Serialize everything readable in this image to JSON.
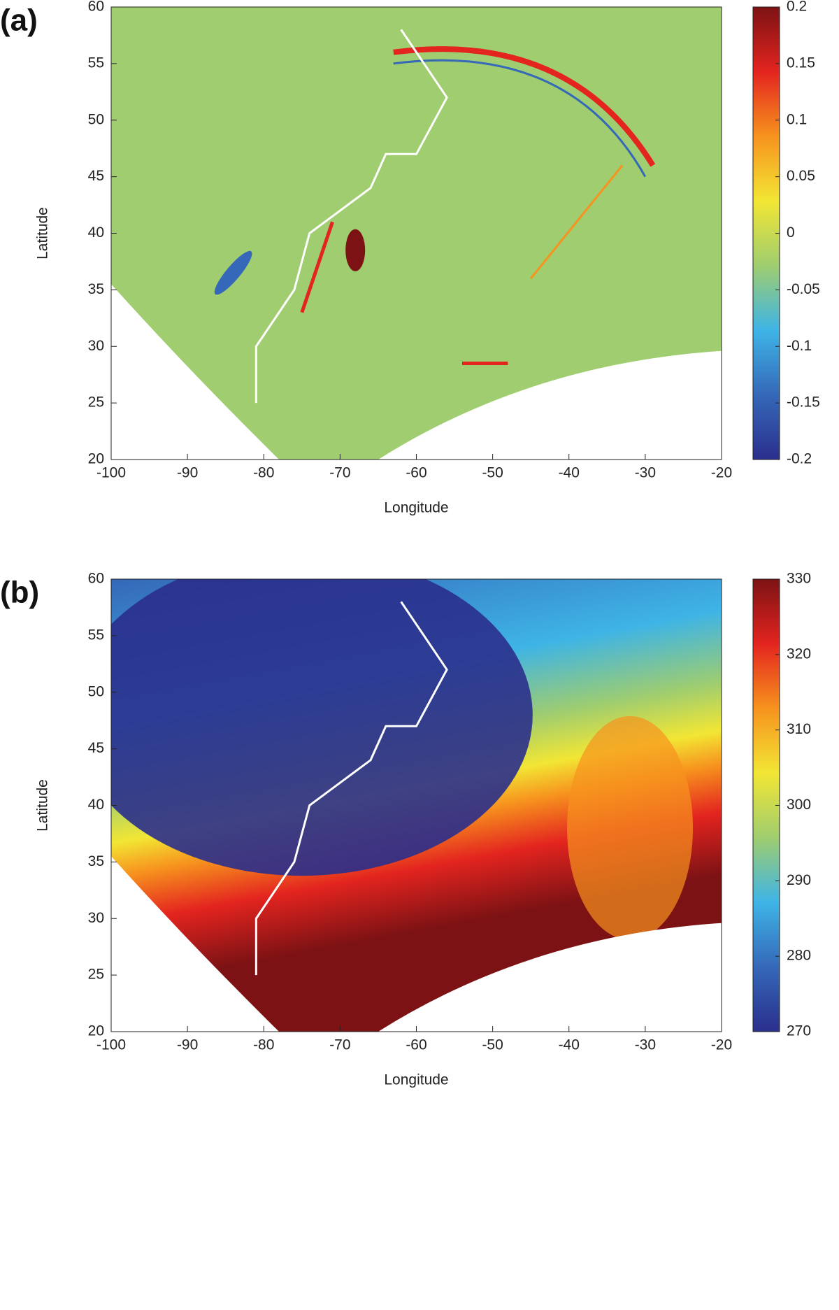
{
  "chart_data": [
    {
      "type": "map",
      "panel_label": "(a)",
      "xlabel": "Longitude",
      "ylabel": "Latitude",
      "xlim": [
        -100,
        -20
      ],
      "xticks": [
        -100,
        -90,
        -80,
        -70,
        -60,
        -50,
        -40,
        -30,
        -20
      ],
      "ylim": [
        20,
        60
      ],
      "yticks": [
        20,
        25,
        30,
        35,
        40,
        45,
        50,
        55,
        60
      ],
      "clim": [
        -0.2,
        0.2
      ],
      "cticks": [
        -0.2,
        -0.15,
        -0.1,
        -0.05,
        0,
        0.05,
        0.1,
        0.15,
        0.2
      ],
      "colormap": [
        "#2a2f8c",
        "#3568b8",
        "#3eb4e6",
        "#9fcd6f",
        "#f2e634",
        "#f7931e",
        "#e3241f",
        "#7d1214"
      ]
    },
    {
      "type": "map",
      "panel_label": "(b)",
      "xlabel": "Longitude",
      "ylabel": "Latitude",
      "xlim": [
        -100,
        -20
      ],
      "xticks": [
        -100,
        -90,
        -80,
        -70,
        -60,
        -50,
        -40,
        -30,
        -20
      ],
      "ylim": [
        20,
        60
      ],
      "yticks": [
        20,
        25,
        30,
        35,
        40,
        45,
        50,
        55,
        60
      ],
      "clim": [
        270,
        330
      ],
      "cticks": [
        270,
        280,
        290,
        300,
        310,
        320,
        330
      ],
      "colormap": [
        "#2a2f8c",
        "#3568b8",
        "#3eb4e6",
        "#9fcd6f",
        "#f2e634",
        "#f7931e",
        "#e3241f",
        "#7d1214"
      ]
    }
  ]
}
